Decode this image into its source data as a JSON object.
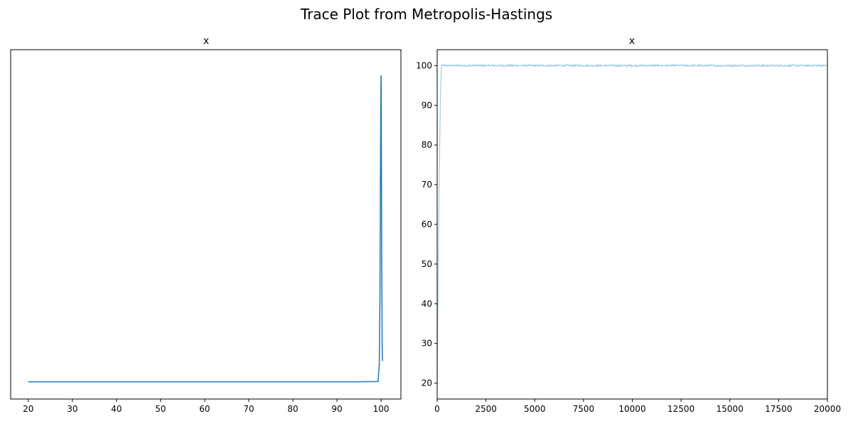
{
  "figure": {
    "suptitle": "Trace Plot from Metropolis-Hastings"
  },
  "chart_data": [
    {
      "type": "line",
      "title": "x",
      "xlabel": "",
      "ylabel": "",
      "xlim": [
        16,
        104.5
      ],
      "ylim": [
        -0.002,
        0.0385
      ],
      "x_ticks": [
        20,
        30,
        40,
        50,
        60,
        70,
        80,
        90,
        100
      ],
      "y_ticks_visible": false,
      "grid": false,
      "color": "#1f77b4",
      "series": [
        {
          "x": [
            20,
            40,
            60,
            80,
            95,
            99.3,
            99.6,
            99.75,
            99.85,
            99.92,
            99.97,
            100.0,
            100.03,
            100.08,
            100.15,
            100.25,
            100.3
          ],
          "y": [
            0,
            0,
            0,
            0,
            0,
            3e-05,
            0.002,
            0.01,
            0.022,
            0.03,
            0.0345,
            0.0355,
            0.034,
            0.026,
            0.014,
            0.004,
            0.0024
          ]
        }
      ]
    },
    {
      "type": "line",
      "title": "x",
      "xlabel": "",
      "ylabel": "",
      "xlim": [
        0,
        20000
      ],
      "ylim": [
        16,
        104
      ],
      "x_ticks": [
        0,
        2500,
        5000,
        7500,
        10000,
        12500,
        15000,
        17500,
        20000
      ],
      "y_ticks": [
        20,
        30,
        40,
        50,
        60,
        70,
        80,
        90,
        100
      ],
      "grid": false,
      "color": "#a6cee3",
      "trace": {
        "burn_in": [
          [
            0,
            20
          ],
          [
            40,
            40
          ],
          [
            80,
            60
          ],
          [
            130,
            80
          ],
          [
            180,
            95
          ],
          [
            220,
            100
          ]
        ],
        "stationary_mean": 100,
        "stationary_spread": 0.25,
        "n_samples": 20000
      }
    }
  ]
}
